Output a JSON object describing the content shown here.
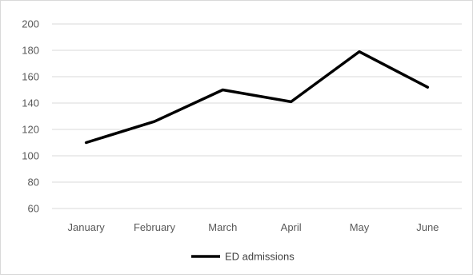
{
  "chart_data": {
    "type": "line",
    "categories": [
      "January",
      "February",
      "March",
      "April",
      "May",
      "June"
    ],
    "series": [
      {
        "name": "ED admissions",
        "values": [
          110,
          126,
          150,
          141,
          179,
          152
        ],
        "color": "#000000"
      }
    ],
    "ylim": [
      60,
      200
    ],
    "y_ticks": [
      60,
      80,
      100,
      120,
      140,
      160,
      180,
      200
    ],
    "y_tick_labels": [
      "60",
      "80",
      "100",
      "120",
      "140",
      "160",
      "180",
      "200"
    ],
    "grid": true,
    "legend_position": "bottom",
    "colors": {
      "grid": "#d9d9d9",
      "text": "#595959",
      "line": "#000000"
    }
  }
}
